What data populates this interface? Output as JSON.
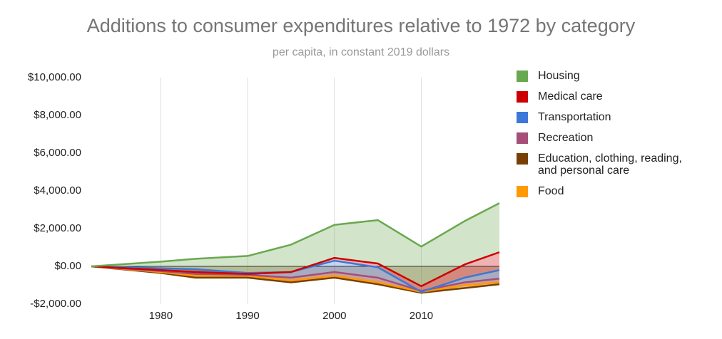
{
  "chart_data": {
    "type": "stacked-area",
    "title": "Additions to consumer expenditures relative to 1972 by category",
    "subtitle": "per capita, in constant 2019 dollars",
    "x": [
      1972,
      1980,
      1984,
      1990,
      1995,
      2000,
      2005,
      2010,
      2015,
      2019
    ],
    "series": [
      {
        "name": "Housing",
        "color": "#6aa84f",
        "values": [
          0,
          450,
          700,
          950,
          1450,
          1750,
          2300,
          2100,
          2300,
          2600
        ]
      },
      {
        "name": "Medical care",
        "color": "#cc0000",
        "values": [
          0,
          -100,
          -150,
          -50,
          0,
          150,
          200,
          300,
          700,
          950
        ]
      },
      {
        "name": "Transportation",
        "color": "#3c78d8",
        "values": [
          0,
          150,
          250,
          100,
          300,
          600,
          550,
          -50,
          250,
          450
        ]
      },
      {
        "name": "Recreation",
        "color": "#a64d79",
        "values": [
          0,
          50,
          100,
          50,
          150,
          200,
          250,
          50,
          150,
          200
        ]
      },
      {
        "name": "Education, clothing, reading, and personal care",
        "color": "#783f04",
        "values": [
          0,
          -350,
          -600,
          -600,
          -850,
          -600,
          -950,
          -1400,
          -1150,
          -950
        ]
      },
      {
        "name": "Food",
        "color": "#ff9900",
        "values": [
          0,
          50,
          100,
          100,
          100,
          100,
          100,
          50,
          150,
          100
        ]
      }
    ],
    "xlim": [
      1972,
      2019
    ],
    "xticks": [
      1980,
      1990,
      2000,
      2010
    ],
    "ylim": [
      -2000,
      10000
    ],
    "yticks": [
      {
        "value": -2000,
        "label": "-$2,000.00"
      },
      {
        "value": 0,
        "label": "$0.00"
      },
      {
        "value": 2000,
        "label": "$2,000.00"
      },
      {
        "value": 4000,
        "label": "$4,000.00"
      },
      {
        "value": 6000,
        "label": "$6,000.00"
      },
      {
        "value": 8000,
        "label": "$8,000.00"
      },
      {
        "value": 10000,
        "label": "$10,000.00"
      }
    ]
  }
}
